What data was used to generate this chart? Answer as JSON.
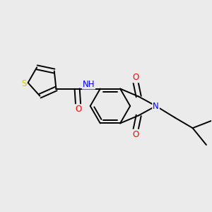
{
  "background_color": "#ebebeb",
  "bond_color": "#000000",
  "atom_colors": {
    "O": "#ff0000",
    "N": "#0000ff",
    "S": "#cccc00",
    "H": "#555555",
    "C": "#000000"
  },
  "figsize": [
    3.0,
    3.0
  ],
  "dpi": 100
}
